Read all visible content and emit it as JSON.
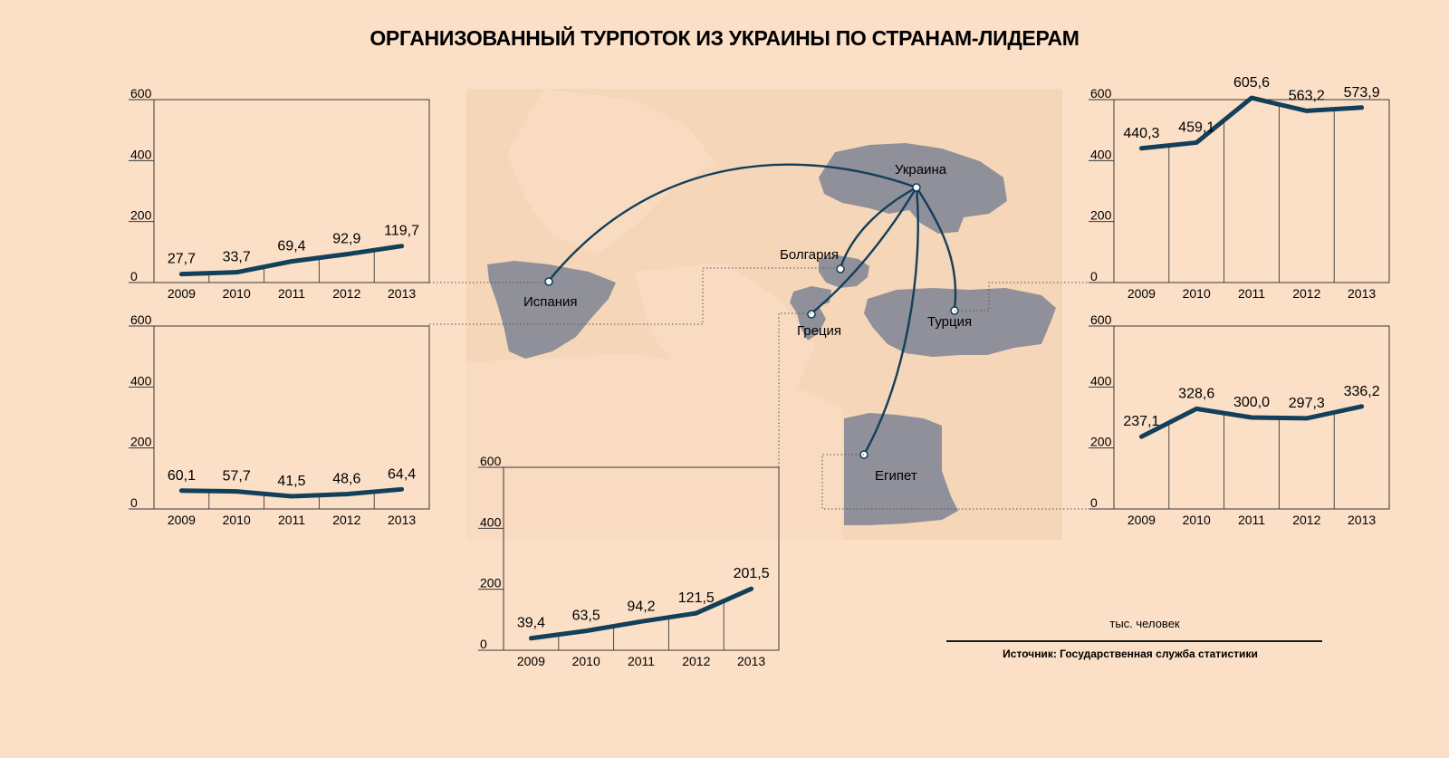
{
  "title": "ОРГАНИЗОВАННЫЙ ТУРПОТОК ИЗ УКРАИНЫ ПО СТРАНАМ-ЛИДЕРАМ",
  "unit_note": "тыс. человек",
  "source": "Источник: Государственная служба статистики",
  "countries": {
    "ukraine": "Украина",
    "spain": "Испания",
    "bulgaria": "Болгария",
    "greece": "Греция",
    "turkey": "Турция",
    "egypt": "Египет"
  },
  "colors": {
    "background": "#fbdfc6",
    "line": "#123f5a",
    "land": "#8f9099",
    "map_panel": "#f6d6b8"
  },
  "chart_data": [
    {
      "type": "line",
      "id": "spain",
      "x": [
        "2009",
        "2010",
        "2011",
        "2012",
        "2013"
      ],
      "values": [
        27.7,
        33.7,
        69.4,
        92.9,
        119.7
      ],
      "value_labels": [
        "27,7",
        "33,7",
        "69,4",
        "92,9",
        "119,7"
      ],
      "yticks": [
        "0",
        "200",
        "400",
        "600"
      ],
      "ylim": [
        0,
        600
      ]
    },
    {
      "type": "line",
      "id": "bulgaria",
      "x": [
        "2009",
        "2010",
        "2011",
        "2012",
        "2013"
      ],
      "values": [
        60.1,
        57.7,
        41.5,
        48.6,
        64.4
      ],
      "value_labels": [
        "60,1",
        "57,7",
        "41,5",
        "48,6",
        "64,4"
      ],
      "yticks": [
        "0",
        "200",
        "400",
        "600"
      ],
      "ylim": [
        0,
        600
      ]
    },
    {
      "type": "line",
      "id": "greece",
      "x": [
        "2009",
        "2010",
        "2011",
        "2012",
        "2013"
      ],
      "values": [
        39.4,
        63.5,
        94.2,
        121.5,
        201.5
      ],
      "value_labels": [
        "39,4",
        "63,5",
        "94,2",
        "121,5",
        "201,5"
      ],
      "yticks": [
        "0",
        "200",
        "400",
        "600"
      ],
      "ylim": [
        0,
        600
      ]
    },
    {
      "type": "line",
      "id": "turkey",
      "x": [
        "2009",
        "2010",
        "2011",
        "2012",
        "2013"
      ],
      "values": [
        440.3,
        459.1,
        605.6,
        563.2,
        573.9
      ],
      "value_labels": [
        "440,3",
        "459,1",
        "605,6",
        "563,2",
        "573,9"
      ],
      "yticks": [
        "0",
        "200",
        "400",
        "600"
      ],
      "ylim": [
        0,
        600
      ]
    },
    {
      "type": "line",
      "id": "egypt",
      "x": [
        "2009",
        "2010",
        "2011",
        "2012",
        "2013"
      ],
      "values": [
        237.1,
        328.6,
        300.0,
        297.3,
        336.2
      ],
      "value_labels": [
        "237,1",
        "328,6",
        "300,0",
        "297,3",
        "336,2"
      ],
      "yticks": [
        "0",
        "200",
        "400",
        "600"
      ],
      "ylim": [
        0,
        600
      ]
    }
  ]
}
